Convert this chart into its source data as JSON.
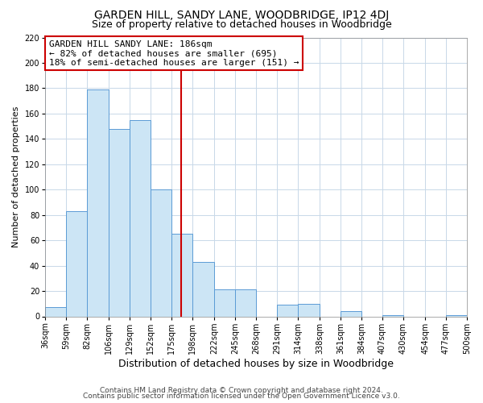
{
  "title": "GARDEN HILL, SANDY LANE, WOODBRIDGE, IP12 4DJ",
  "subtitle": "Size of property relative to detached houses in Woodbridge",
  "xlabel": "Distribution of detached houses by size in Woodbridge",
  "ylabel": "Number of detached properties",
  "bar_edges": [
    36,
    59,
    82,
    106,
    129,
    152,
    175,
    198,
    222,
    245,
    268,
    291,
    314,
    338,
    361,
    384,
    407,
    430,
    454,
    477,
    500
  ],
  "bar_heights": [
    7,
    83,
    179,
    148,
    155,
    100,
    65,
    43,
    21,
    21,
    0,
    9,
    10,
    0,
    4,
    0,
    1,
    0,
    0,
    1
  ],
  "bar_color": "#cce5f5",
  "bar_edge_color": "#5b9bd5",
  "property_line_x": 186,
  "property_line_color": "#cc0000",
  "annotation_text": "GARDEN HILL SANDY LANE: 186sqm\n← 82% of detached houses are smaller (695)\n18% of semi-detached houses are larger (151) →",
  "annotation_box_color": "#ffffff",
  "annotation_box_edge_color": "#cc0000",
  "ylim": [
    0,
    220
  ],
  "yticks": [
    0,
    20,
    40,
    60,
    80,
    100,
    120,
    140,
    160,
    180,
    200,
    220
  ],
  "xtick_labels": [
    "36sqm",
    "59sqm",
    "82sqm",
    "106sqm",
    "129sqm",
    "152sqm",
    "175sqm",
    "198sqm",
    "222sqm",
    "245sqm",
    "268sqm",
    "291sqm",
    "314sqm",
    "338sqm",
    "361sqm",
    "384sqm",
    "407sqm",
    "430sqm",
    "454sqm",
    "477sqm",
    "500sqm"
  ],
  "footer_line1": "Contains HM Land Registry data © Crown copyright and database right 2024.",
  "footer_line2": "Contains public sector information licensed under the Open Government Licence v3.0.",
  "background_color": "#ffffff",
  "grid_color": "#c8d8e8",
  "title_fontsize": 10,
  "subtitle_fontsize": 9,
  "xlabel_fontsize": 9,
  "ylabel_fontsize": 8,
  "tick_fontsize": 7,
  "annotation_fontsize": 8,
  "footer_fontsize": 6.5
}
